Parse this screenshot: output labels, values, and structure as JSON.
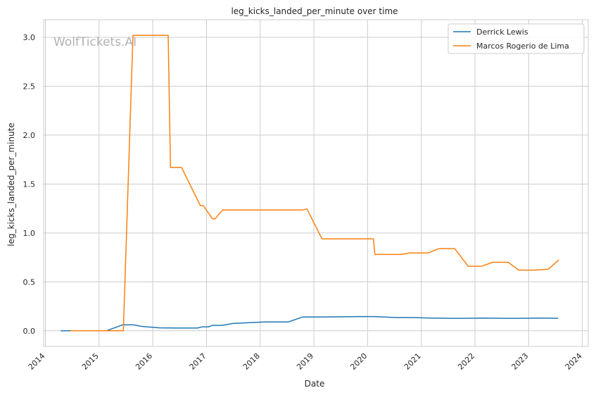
{
  "chart_data": {
    "type": "line",
    "title": "leg_kicks_landed_per_minute over time",
    "xlabel": "Date",
    "ylabel": "leg_kicks_landed_per_minute",
    "watermark": "WolfTickets.AI",
    "x_ticks": [
      "2014",
      "2015",
      "2016",
      "2017",
      "2018",
      "2019",
      "2020",
      "2021",
      "2022",
      "2023",
      "2024"
    ],
    "y_ticks": [
      "0.0",
      "0.5",
      "1.0",
      "1.5",
      "2.0",
      "2.5",
      "3.0"
    ],
    "xlim": [
      "2013-12-20",
      "2024-02-10"
    ],
    "ylim": [
      -0.16,
      3.18
    ],
    "grid": true,
    "legend_position": "top-right",
    "series": [
      {
        "name": "Derrick Lewis",
        "color": "#1f77b4",
        "points": [
          [
            "2014-04-15",
            0.0
          ],
          [
            "2014-06-20",
            0.0
          ],
          [
            "2014-09-15",
            0.0
          ],
          [
            "2015-02-20",
            0.0
          ],
          [
            "2015-06-10",
            0.06
          ],
          [
            "2015-08-25",
            0.06
          ],
          [
            "2015-10-15",
            0.045
          ],
          [
            "2016-02-15",
            0.03
          ],
          [
            "2016-06-15",
            0.028
          ],
          [
            "2016-11-01",
            0.028
          ],
          [
            "2016-12-01",
            0.04
          ],
          [
            "2017-01-15",
            0.04
          ],
          [
            "2017-02-10",
            0.055
          ],
          [
            "2017-04-15",
            0.055
          ],
          [
            "2017-07-01",
            0.075
          ],
          [
            "2018-02-01",
            0.09
          ],
          [
            "2018-07-10",
            0.09
          ],
          [
            "2018-10-15",
            0.14
          ],
          [
            "2019-02-15",
            0.14
          ],
          [
            "2019-11-15",
            0.145
          ],
          [
            "2020-02-15",
            0.145
          ],
          [
            "2020-07-15",
            0.135
          ],
          [
            "2020-11-01",
            0.135
          ],
          [
            "2021-03-01",
            0.13
          ],
          [
            "2021-07-15",
            0.127
          ],
          [
            "2021-11-01",
            0.127
          ],
          [
            "2022-03-01",
            0.13
          ],
          [
            "2022-07-15",
            0.127
          ],
          [
            "2022-11-01",
            0.127
          ],
          [
            "2023-03-01",
            0.13
          ],
          [
            "2023-07-20",
            0.128
          ]
        ]
      },
      {
        "name": "Marcos Rogerio de Lima",
        "color": "#ff7f0e",
        "points": [
          [
            "2014-06-20",
            0.0
          ],
          [
            "2015-06-15",
            0.0
          ],
          [
            "2015-08-20",
            3.02
          ],
          [
            "2016-04-15",
            3.02
          ],
          [
            "2016-05-01",
            1.67
          ],
          [
            "2016-07-15",
            1.67
          ],
          [
            "2016-11-20",
            1.28
          ],
          [
            "2016-12-10",
            1.28
          ],
          [
            "2017-02-10",
            1.145
          ],
          [
            "2017-03-01",
            1.145
          ],
          [
            "2017-04-20",
            1.235
          ],
          [
            "2018-10-15",
            1.235
          ],
          [
            "2018-11-15",
            1.245
          ],
          [
            "2019-02-25",
            0.94
          ],
          [
            "2020-02-10",
            0.94
          ],
          [
            "2020-02-20",
            0.78
          ],
          [
            "2020-08-15",
            0.78
          ],
          [
            "2020-10-15",
            0.795
          ],
          [
            "2021-02-15",
            0.795
          ],
          [
            "2021-05-01",
            0.84
          ],
          [
            "2021-08-15",
            0.84
          ],
          [
            "2021-11-15",
            0.66
          ],
          [
            "2022-02-15",
            0.66
          ],
          [
            "2022-05-01",
            0.7
          ],
          [
            "2022-08-15",
            0.7
          ],
          [
            "2022-10-25",
            0.62
          ],
          [
            "2023-02-15",
            0.62
          ],
          [
            "2023-05-15",
            0.63
          ],
          [
            "2023-07-25",
            0.725
          ]
        ]
      }
    ]
  }
}
